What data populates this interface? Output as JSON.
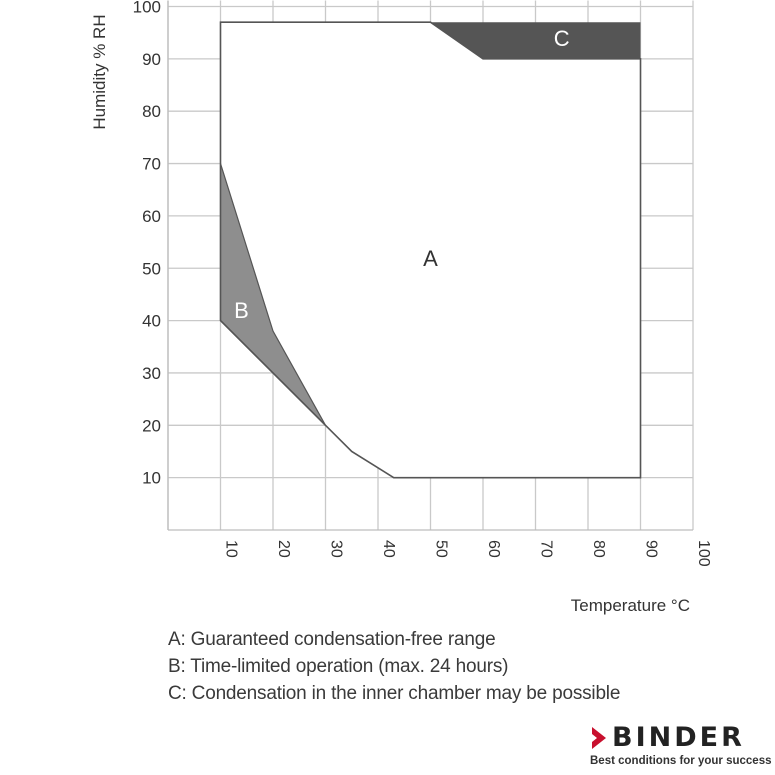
{
  "chart_data": {
    "type": "area",
    "xlabel": "Temperature °C",
    "ylabel": "Humidity % RH",
    "xlim": [
      0,
      100
    ],
    "ylim": [
      0,
      100
    ],
    "x_ticks": [
      "10",
      "20",
      "30",
      "40",
      "50",
      "60",
      "70",
      "80",
      "90",
      "100"
    ],
    "y_ticks": [
      "10",
      "20",
      "30",
      "40",
      "50",
      "60",
      "70",
      "80",
      "90",
      "100"
    ],
    "grid": true,
    "regions": [
      {
        "name": "A",
        "label": "A",
        "label_at": [
          50,
          52
        ],
        "color": "#ffffff",
        "points": [
          [
            10,
            97
          ],
          [
            50,
            97
          ],
          [
            60,
            90
          ],
          [
            90,
            90
          ],
          [
            90,
            10
          ],
          [
            43,
            10
          ],
          [
            35,
            15
          ],
          [
            30,
            20
          ],
          [
            10,
            40
          ]
        ]
      },
      {
        "name": "B",
        "label": "B",
        "label_at": [
          14,
          42
        ],
        "color": "#8e8e8e",
        "points": [
          [
            10,
            70
          ],
          [
            20,
            38
          ],
          [
            30,
            20
          ],
          [
            10,
            40
          ]
        ]
      },
      {
        "name": "C",
        "label": "C",
        "label_at": [
          75,
          94
        ],
        "color": "#555555",
        "points": [
          [
            50,
            97
          ],
          [
            90,
            97
          ],
          [
            90,
            90
          ],
          [
            60,
            90
          ]
        ]
      }
    ]
  },
  "legend": {
    "a": "A: Guaranteed condensation-free range",
    "b": "B: Time-limited operation (max. 24 hours)",
    "c": "C: Condensation in the inner chamber may be possible"
  },
  "brand": {
    "name": "BINDER",
    "slogan": "Best conditions for your success",
    "accent_color": "#c8102e"
  }
}
